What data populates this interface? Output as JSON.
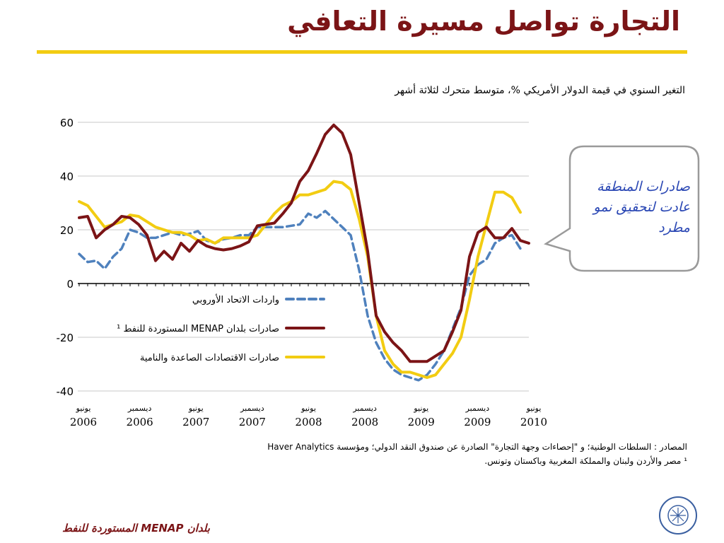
{
  "title": "التجارة تواصل مسيرة التعافي",
  "subtitle": "التغير السنوي في قيمة الدولار الأمريكي %، متوسط متحرك لثلاثة أشهر",
  "callout": "صادرات المنطقة عادت لتحقيق نمو مطرد",
  "sources_line1": "المصادر : السلطات الوطنية؛ و \"إحصاءات وجهة التجارة\" الصادرة عن صندوق النقد الدولي؛ ومؤسسة Haver Analytics",
  "sources_line2": "¹ مصر والأردن ولبنان والمملكة المغربية وباكستان وتونس.",
  "footer": "بلدان MENAP المستوردة للنفط",
  "chart_data": {
    "type": "line",
    "ylim": [
      -40,
      60
    ],
    "yticks": [
      -40,
      -20,
      0,
      20,
      40,
      60
    ],
    "ytick_labels": [
      "-40",
      "-20",
      "0",
      "20",
      "40",
      "60"
    ],
    "x_ticks": [
      {
        "month": "يونيو",
        "year": "2006"
      },
      {
        "month": "ديسمبر",
        "year": "2006"
      },
      {
        "month": "يونيو",
        "year": "2007"
      },
      {
        "month": "ديسمبر",
        "year": "2007"
      },
      {
        "month": "يونيو",
        "year": "2008"
      },
      {
        "month": "ديسمبر",
        "year": "2008"
      },
      {
        "month": "يونيو",
        "year": "2009"
      },
      {
        "month": "ديسمبر",
        "year": "2009"
      },
      {
        "month": "يونيو",
        "year": "2010"
      }
    ],
    "series": [
      {
        "name": "واردات الاتحاد الأوروبي",
        "color": "#4f81bd",
        "dash": true,
        "values": [
          11,
          8,
          8.5,
          5.5,
          10,
          13,
          20,
          19,
          17,
          17,
          18,
          19,
          18,
          18.5,
          19.5,
          16,
          15,
          16.5,
          17,
          18,
          18,
          21,
          21,
          21,
          21,
          21.5,
          22,
          26,
          24.5,
          27,
          24,
          21,
          18,
          5,
          -12,
          -22,
          -28,
          -32,
          -34,
          -35,
          -36,
          -34,
          -30,
          -25,
          -17,
          -9,
          3,
          7,
          9,
          15,
          17,
          18,
          13
        ]
      },
      {
        "name": "صادرات بلدان MENAP المستوردة للنفط ¹",
        "color": "#7b1416",
        "dash": false,
        "values": [
          24.5,
          25,
          17,
          20,
          22,
          25,
          24.5,
          22,
          18,
          8.5,
          12,
          9,
          15,
          12,
          16,
          14,
          13,
          12.5,
          13,
          14,
          15.5,
          21.5,
          22,
          22.5,
          26,
          30,
          38,
          42,
          48.5,
          55.5,
          59,
          56,
          48,
          30,
          12,
          -12,
          -18,
          -22,
          -25,
          -29,
          -29,
          -29,
          -27,
          -25,
          -18,
          -10,
          10,
          19,
          21,
          17,
          17,
          20.5,
          16,
          15
        ]
      },
      {
        "name": "صادرات الاقتصادات الصاعدة والنامية",
        "color": "#f2cc12",
        "dash": false,
        "values": [
          30.5,
          29,
          25,
          21,
          22,
          23,
          25.5,
          25,
          23,
          21,
          20,
          19,
          19,
          18,
          16,
          16.5,
          15,
          17,
          17,
          17,
          17,
          18,
          22,
          26,
          29,
          30.5,
          33,
          33,
          34,
          35,
          38,
          37.5,
          35,
          24,
          10,
          -12,
          -25,
          -30,
          -33,
          -33,
          -34,
          -35,
          -34,
          -30,
          -26,
          -20,
          -6,
          10,
          22,
          34,
          34,
          32,
          26.5
        ]
      }
    ]
  }
}
